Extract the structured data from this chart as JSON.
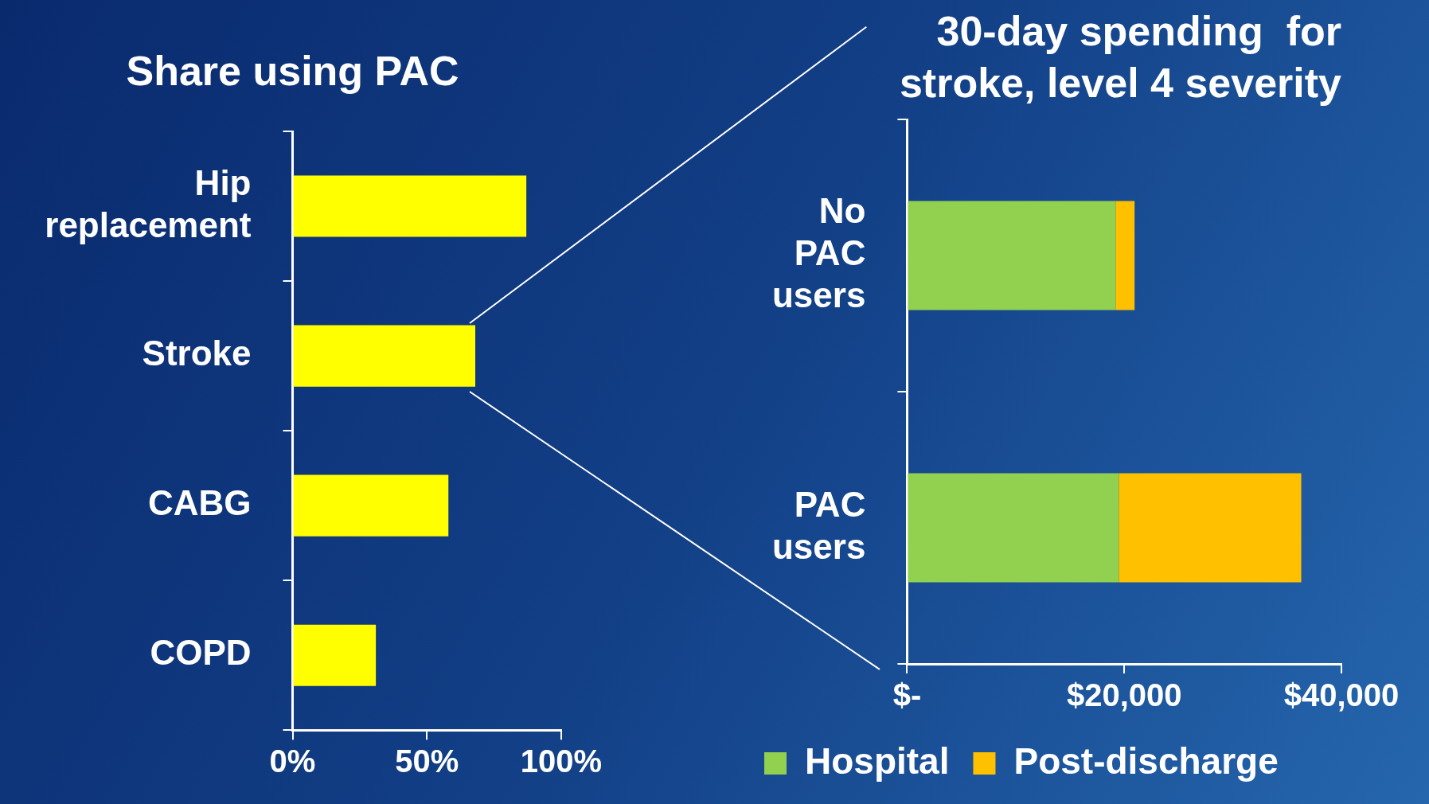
{
  "chart_data": [
    {
      "type": "bar",
      "title": "Share using PAC",
      "orientation": "horizontal",
      "categories": [
        "Hip replacement",
        "Stroke",
        "CABG",
        "COPD"
      ],
      "values": [
        87,
        68,
        58,
        31
      ],
      "color": "#ffff00",
      "xlim": [
        0,
        100
      ],
      "xticks": [
        {
          "value": 0,
          "label": "0%"
        },
        {
          "value": 50,
          "label": "50%"
        },
        {
          "value": 100,
          "label": "100%"
        }
      ],
      "grid": false,
      "legend": false
    },
    {
      "type": "bar",
      "title": "30-day spending  for stroke, level 4 severity",
      "orientation": "horizontal",
      "stacked": true,
      "categories": [
        "No PAC users",
        "PAC users"
      ],
      "series": [
        {
          "name": "Hospital",
          "color": "#92d050",
          "values": [
            19200,
            19500
          ]
        },
        {
          "name": "Post-discharge",
          "color": "#ffc000",
          "values": [
            1750,
            16800
          ]
        }
      ],
      "xlim": [
        0,
        40000
      ],
      "xticks": [
        {
          "value": 0,
          "label": "$-"
        },
        {
          "value": 20000,
          "label": "$20,000"
        },
        {
          "value": 40000,
          "label": "$40,000"
        }
      ],
      "grid": false,
      "legend": "bottom"
    }
  ]
}
